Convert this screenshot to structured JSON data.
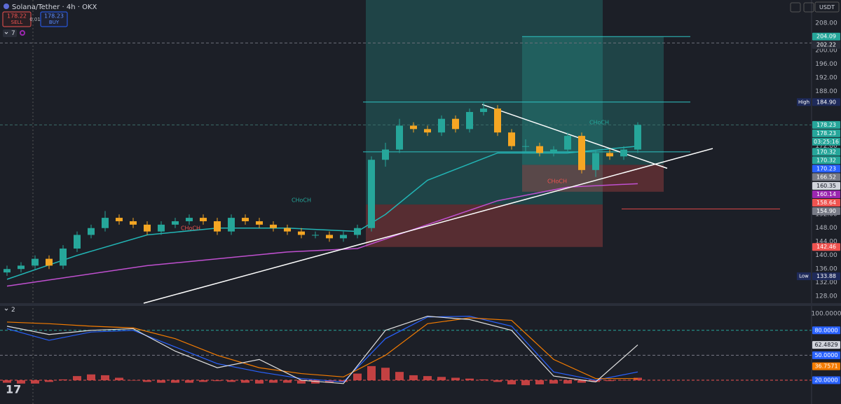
{
  "header": {
    "symbol": "Solana/Tether · 4h · OKX",
    "sell_price": 178.22,
    "sell": "SELL",
    "spread": 0.01,
    "buy_price": 178.23,
    "buy": "BUY",
    "indicator_count": 7,
    "currency": "USDT"
  },
  "chart_data": [
    {
      "type": "candlestick",
      "open": [
        135,
        136,
        137,
        139,
        137,
        142,
        146,
        148,
        151,
        150,
        149,
        147,
        149,
        150,
        151,
        150,
        147,
        151,
        150,
        149,
        148,
        147,
        146,
        146,
        145,
        146,
        148,
        168,
        171,
        178,
        177,
        176,
        180,
        177,
        182,
        183,
        176,
        172,
        172,
        170,
        171,
        175,
        165,
        170,
        169,
        171
      ],
      "high": [
        137,
        138,
        140,
        140,
        143,
        147,
        149,
        153,
        152,
        151,
        150,
        150,
        151,
        152,
        152,
        151,
        152,
        152,
        151,
        150,
        149,
        148,
        147,
        147,
        147,
        149,
        169,
        173,
        180,
        179,
        178,
        181,
        181,
        183,
        185,
        184,
        177,
        174,
        173,
        172,
        176,
        176,
        171,
        171,
        172,
        179
      ],
      "low": [
        134,
        135,
        136,
        136,
        136,
        141,
        145,
        147,
        149,
        148,
        146,
        146,
        148,
        149,
        149,
        146,
        146,
        149,
        148,
        147,
        146,
        145,
        145,
        144,
        144,
        145,
        147,
        166,
        170,
        176,
        175,
        175,
        176,
        176,
        181,
        175,
        171,
        170,
        169,
        169,
        170,
        164,
        163,
        168,
        168,
        170
      ],
      "close": [
        136,
        137,
        139,
        137,
        142,
        146,
        148,
        151,
        150,
        149,
        147,
        149,
        150,
        151,
        150,
        147,
        151,
        150,
        149,
        148,
        147,
        146,
        146,
        145,
        146,
        148,
        168,
        171,
        178,
        177,
        176,
        180,
        177,
        182,
        183,
        176,
        172,
        172,
        170,
        171,
        175,
        165,
        170,
        169,
        171,
        178.23
      ],
      "up_color": "#26a69a",
      "down_color": "#f5a623",
      "ylim": [
        126,
        214.8
      ],
      "yticks": [
        {
          "value": 208,
          "label": "208.00"
        },
        {
          "value": 200,
          "label": "200.00"
        },
        {
          "value": 196,
          "label": "196.00"
        },
        {
          "value": 192,
          "label": "192.00"
        },
        {
          "value": 188,
          "label": "188.00"
        },
        {
          "value": 172,
          "label": "172.00"
        },
        {
          "value": 152,
          "label": "152.00"
        },
        {
          "value": 148,
          "label": "148.00"
        },
        {
          "value": 144,
          "label": "144.00"
        },
        {
          "value": 140,
          "label": "140.00"
        },
        {
          "value": 136,
          "label": "136.00"
        },
        {
          "value": 132,
          "label": "132.00"
        },
        {
          "value": 128,
          "label": "128.00"
        }
      ],
      "lines": [
        {
          "color": "#22b5b5",
          "x": [
            0,
            5,
            10,
            15,
            20,
            25,
            27,
            30,
            35,
            40,
            45
          ],
          "values": [
            133,
            140,
            146,
            148,
            148,
            147,
            152,
            162,
            170,
            170,
            172
          ]
        },
        {
          "color": "#c050d0",
          "x": [
            0,
            10,
            20,
            25,
            30,
            35,
            40,
            45
          ],
          "values": [
            131,
            137,
            141,
            142,
            149,
            156,
            160,
            161
          ]
        },
        {
          "color": "#ffffff",
          "x": [
            9.75,
            50.35
          ],
          "values": [
            126,
            171.3
          ]
        },
        {
          "color": "#ffffff",
          "x": [
            33.9,
            47.1
          ],
          "values": [
            184.2,
            165.5
          ]
        }
      ],
      "hlines": [
        {
          "value": 204.09,
          "color": "#2ec4c4"
        },
        {
          "value": 202.22,
          "color": "#6b6f7a",
          "dashed": true
        },
        {
          "value": 184.9,
          "color": "#2ec4c4"
        },
        {
          "value": 178.23,
          "color": "#3c6e6a",
          "dashed": true
        },
        {
          "value": 170.32,
          "color": "#2ec4c4"
        },
        {
          "value": 153.6,
          "color": "#e04848"
        }
      ],
      "positions": [
        {
          "entry": 154.9,
          "stop": 142.46
        },
        {
          "entry": 166.52,
          "target": 204.09,
          "stop": 158.64
        }
      ],
      "tags": [
        204.09,
        202.22,
        {
          "value": 184.9,
          "label": "184.90"
        },
        178.23,
        178.23,
        170.32,
        170.32,
        170.23,
        166.52,
        160.35,
        160.14,
        158.64,
        {
          "value": 154.9,
          "label": "154.90"
        },
        142.46,
        133.88
      ],
      "tag_colors": [
        "#26a69a",
        "#2a2e39",
        "#1e2a5a",
        "#26a69a",
        "#26a69a",
        "#26a69a",
        "#26a69a",
        "#2962ff",
        "#787b86",
        "#d1d4dc",
        "#9c27b0",
        "#ef5350",
        "#787b86",
        "#ef5350",
        "#1e2a5a"
      ],
      "countdown": "03:25:16",
      "high_label": "High",
      "low_label": "Low",
      "annotations": [
        {
          "text": "CHoCH",
          "color": "#26a69a"
        },
        {
          "text": "CHoCH",
          "color": "#ef5350"
        },
        {
          "text": "CHoCH",
          "color": "#ef5350"
        },
        {
          "text": "CHoCH",
          "color": "#26a69a"
        }
      ]
    },
    {
      "type": "line",
      "indicator_count": 2,
      "ylim": [
        -1,
        109.3
      ],
      "yticks": [
        {
          "value": 100,
          "label": "100.0000"
        }
      ],
      "series": [
        {
          "color": "#2962ff",
          "x": [
            0,
            3,
            6,
            9,
            12,
            15,
            18,
            21,
            24,
            27,
            30,
            33,
            36,
            39,
            42,
            45
          ],
          "values": [
            82,
            68,
            78,
            80,
            60,
            40,
            30,
            22,
            18,
            70,
            96,
            97,
            85,
            30,
            20,
            30
          ]
        },
        {
          "color": "#f57c00",
          "x": [
            0,
            3,
            6,
            9,
            12,
            15,
            18,
            21,
            24,
            27,
            30,
            33,
            36,
            39,
            42,
            45
          ],
          "values": [
            90,
            88,
            85,
            83,
            70,
            50,
            35,
            28,
            24,
            50,
            88,
            95,
            92,
            45,
            22,
            22
          ]
        },
        {
          "color": "#e0e0e0",
          "x": [
            0,
            3,
            6,
            9,
            12,
            15,
            18,
            21,
            24,
            27,
            30,
            33,
            36,
            39,
            42,
            45
          ],
          "values": [
            85,
            75,
            80,
            82,
            55,
            35,
            45,
            20,
            16,
            80,
            97,
            93,
            80,
            25,
            18,
            62.4829
          ]
        }
      ],
      "histogram": {
        "color": "#e04848",
        "values": [
          17,
          16,
          16,
          18,
          21,
          25,
          27,
          26,
          23,
          20,
          18,
          17,
          17,
          17,
          18,
          19,
          18,
          17,
          16,
          17,
          17,
          16,
          16,
          17,
          18,
          28,
          37,
          35,
          30,
          26,
          25,
          24,
          23,
          22,
          21,
          18,
          15,
          14,
          15,
          16,
          16,
          17,
          18,
          19,
          20,
          23
        ]
      },
      "hlines": [
        {
          "value": 80,
          "color": "#26a69a",
          "dashed": true
        },
        {
          "value": 50,
          "color": "#787b86",
          "dashed": true
        },
        {
          "value": 20,
          "color": "#ef5350",
          "dashed": true
        }
      ],
      "tags": [
        {
          "value": 80,
          "label": "80.0000"
        },
        {
          "value": 62.4829,
          "label": "62.4829"
        },
        {
          "value": 50,
          "label": "50.0000"
        },
        {
          "value": 36.7571,
          "label": "36.7571"
        },
        {
          "value": 20,
          "label": "20.0000"
        }
      ],
      "tag_colors": [
        "#2962ff",
        "#d1d4dc",
        "#2962ff",
        "#f57c00",
        "#2962ff"
      ]
    }
  ]
}
